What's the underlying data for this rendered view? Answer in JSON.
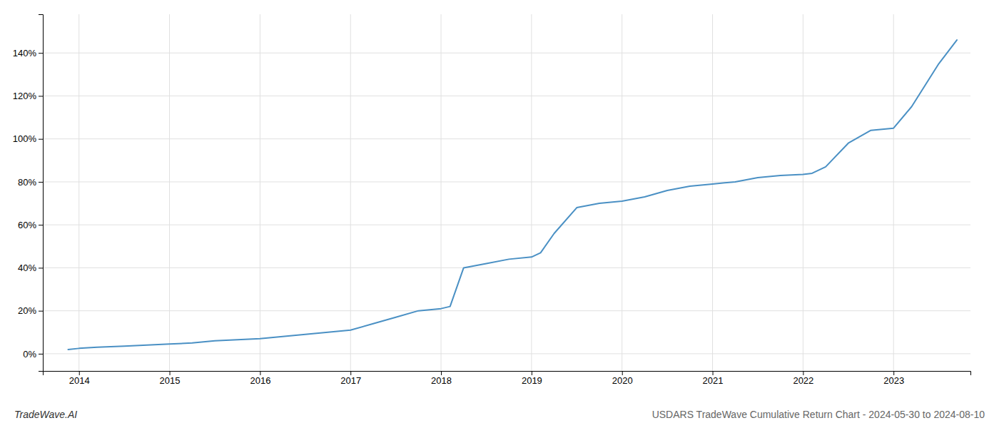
{
  "chart_data": {
    "type": "line",
    "title": "USDARS TradeWave Cumulative Return Chart - 2024-05-30 to 2024-08-10",
    "annotations": [
      {
        "text": "TradeWave.AI"
      }
    ],
    "x": [
      2013.88,
      2014.0,
      2014.2,
      2014.5,
      2014.75,
      2015.0,
      2015.25,
      2015.5,
      2015.75,
      2016.0,
      2016.25,
      2016.5,
      2016.75,
      2017.0,
      2017.25,
      2017.5,
      2017.75,
      2018.0,
      2018.1,
      2018.25,
      2018.5,
      2018.75,
      2019.0,
      2019.1,
      2019.25,
      2019.5,
      2019.75,
      2020.0,
      2020.25,
      2020.5,
      2020.75,
      2021.0,
      2021.25,
      2021.5,
      2021.75,
      2022.0,
      2022.1,
      2022.25,
      2022.5,
      2022.75,
      2023.0,
      2023.2,
      2023.5,
      2023.7
    ],
    "values": [
      2,
      2.5,
      3,
      3.5,
      4,
      4.5,
      5,
      6,
      6.5,
      7,
      8,
      9,
      10,
      11,
      14,
      17,
      20,
      21,
      22,
      40,
      42,
      44,
      45,
      47,
      56,
      68,
      70,
      71,
      73,
      76,
      78,
      79,
      80,
      82,
      83,
      83.5,
      84,
      87,
      98,
      104,
      105,
      115,
      135,
      146
    ],
    "color": "#4a90c4",
    "xlim": [
      2013.6,
      2023.85
    ],
    "xticks": [
      2014,
      2015,
      2016,
      2017,
      2018,
      2019,
      2020,
      2021,
      2022,
      2023
    ],
    "ylim": [
      -8,
      158
    ],
    "yticks": [
      {
        "value": 0,
        "label": "0%"
      },
      {
        "value": 20,
        "label": "20%"
      },
      {
        "value": 40,
        "label": "40%"
      },
      {
        "value": 60,
        "label": "60%"
      },
      {
        "value": 80,
        "label": "80%"
      },
      {
        "value": 100,
        "label": "100%"
      },
      {
        "value": 120,
        "label": "120%"
      },
      {
        "value": 140,
        "label": "140%"
      }
    ],
    "grid": true
  }
}
